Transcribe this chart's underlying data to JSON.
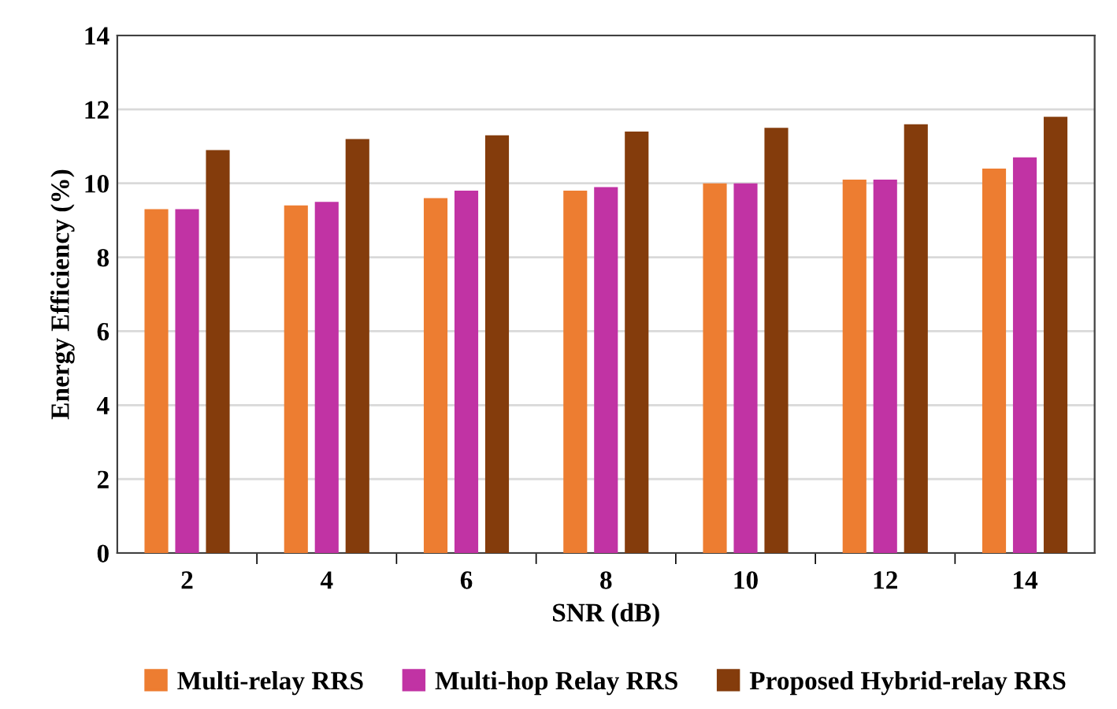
{
  "chart_data": {
    "type": "bar",
    "xlabel": "SNR (dB)",
    "ylabel": "Energy Efficiency (%)",
    "categories": [
      "2",
      "4",
      "6",
      "8",
      "10",
      "12",
      "14"
    ],
    "series": [
      {
        "name": "Multi-relay RRS",
        "color": "#ed7d31",
        "values": [
          9.3,
          9.4,
          9.6,
          9.8,
          10.0,
          10.1,
          10.4
        ]
      },
      {
        "name": "Multi-hop Relay RRS",
        "color": "#c133a4",
        "values": [
          9.3,
          9.5,
          9.8,
          9.9,
          10.0,
          10.1,
          10.7
        ]
      },
      {
        "name": "Proposed Hybrid-relay RRS",
        "color": "#843c0c",
        "values": [
          10.9,
          11.2,
          11.3,
          11.4,
          11.5,
          11.6,
          11.8
        ]
      }
    ],
    "ylim": [
      0,
      14
    ],
    "yticks": [
      0,
      2,
      4,
      6,
      8,
      10,
      12,
      14
    ],
    "grid": "y",
    "legend": "bottom"
  }
}
